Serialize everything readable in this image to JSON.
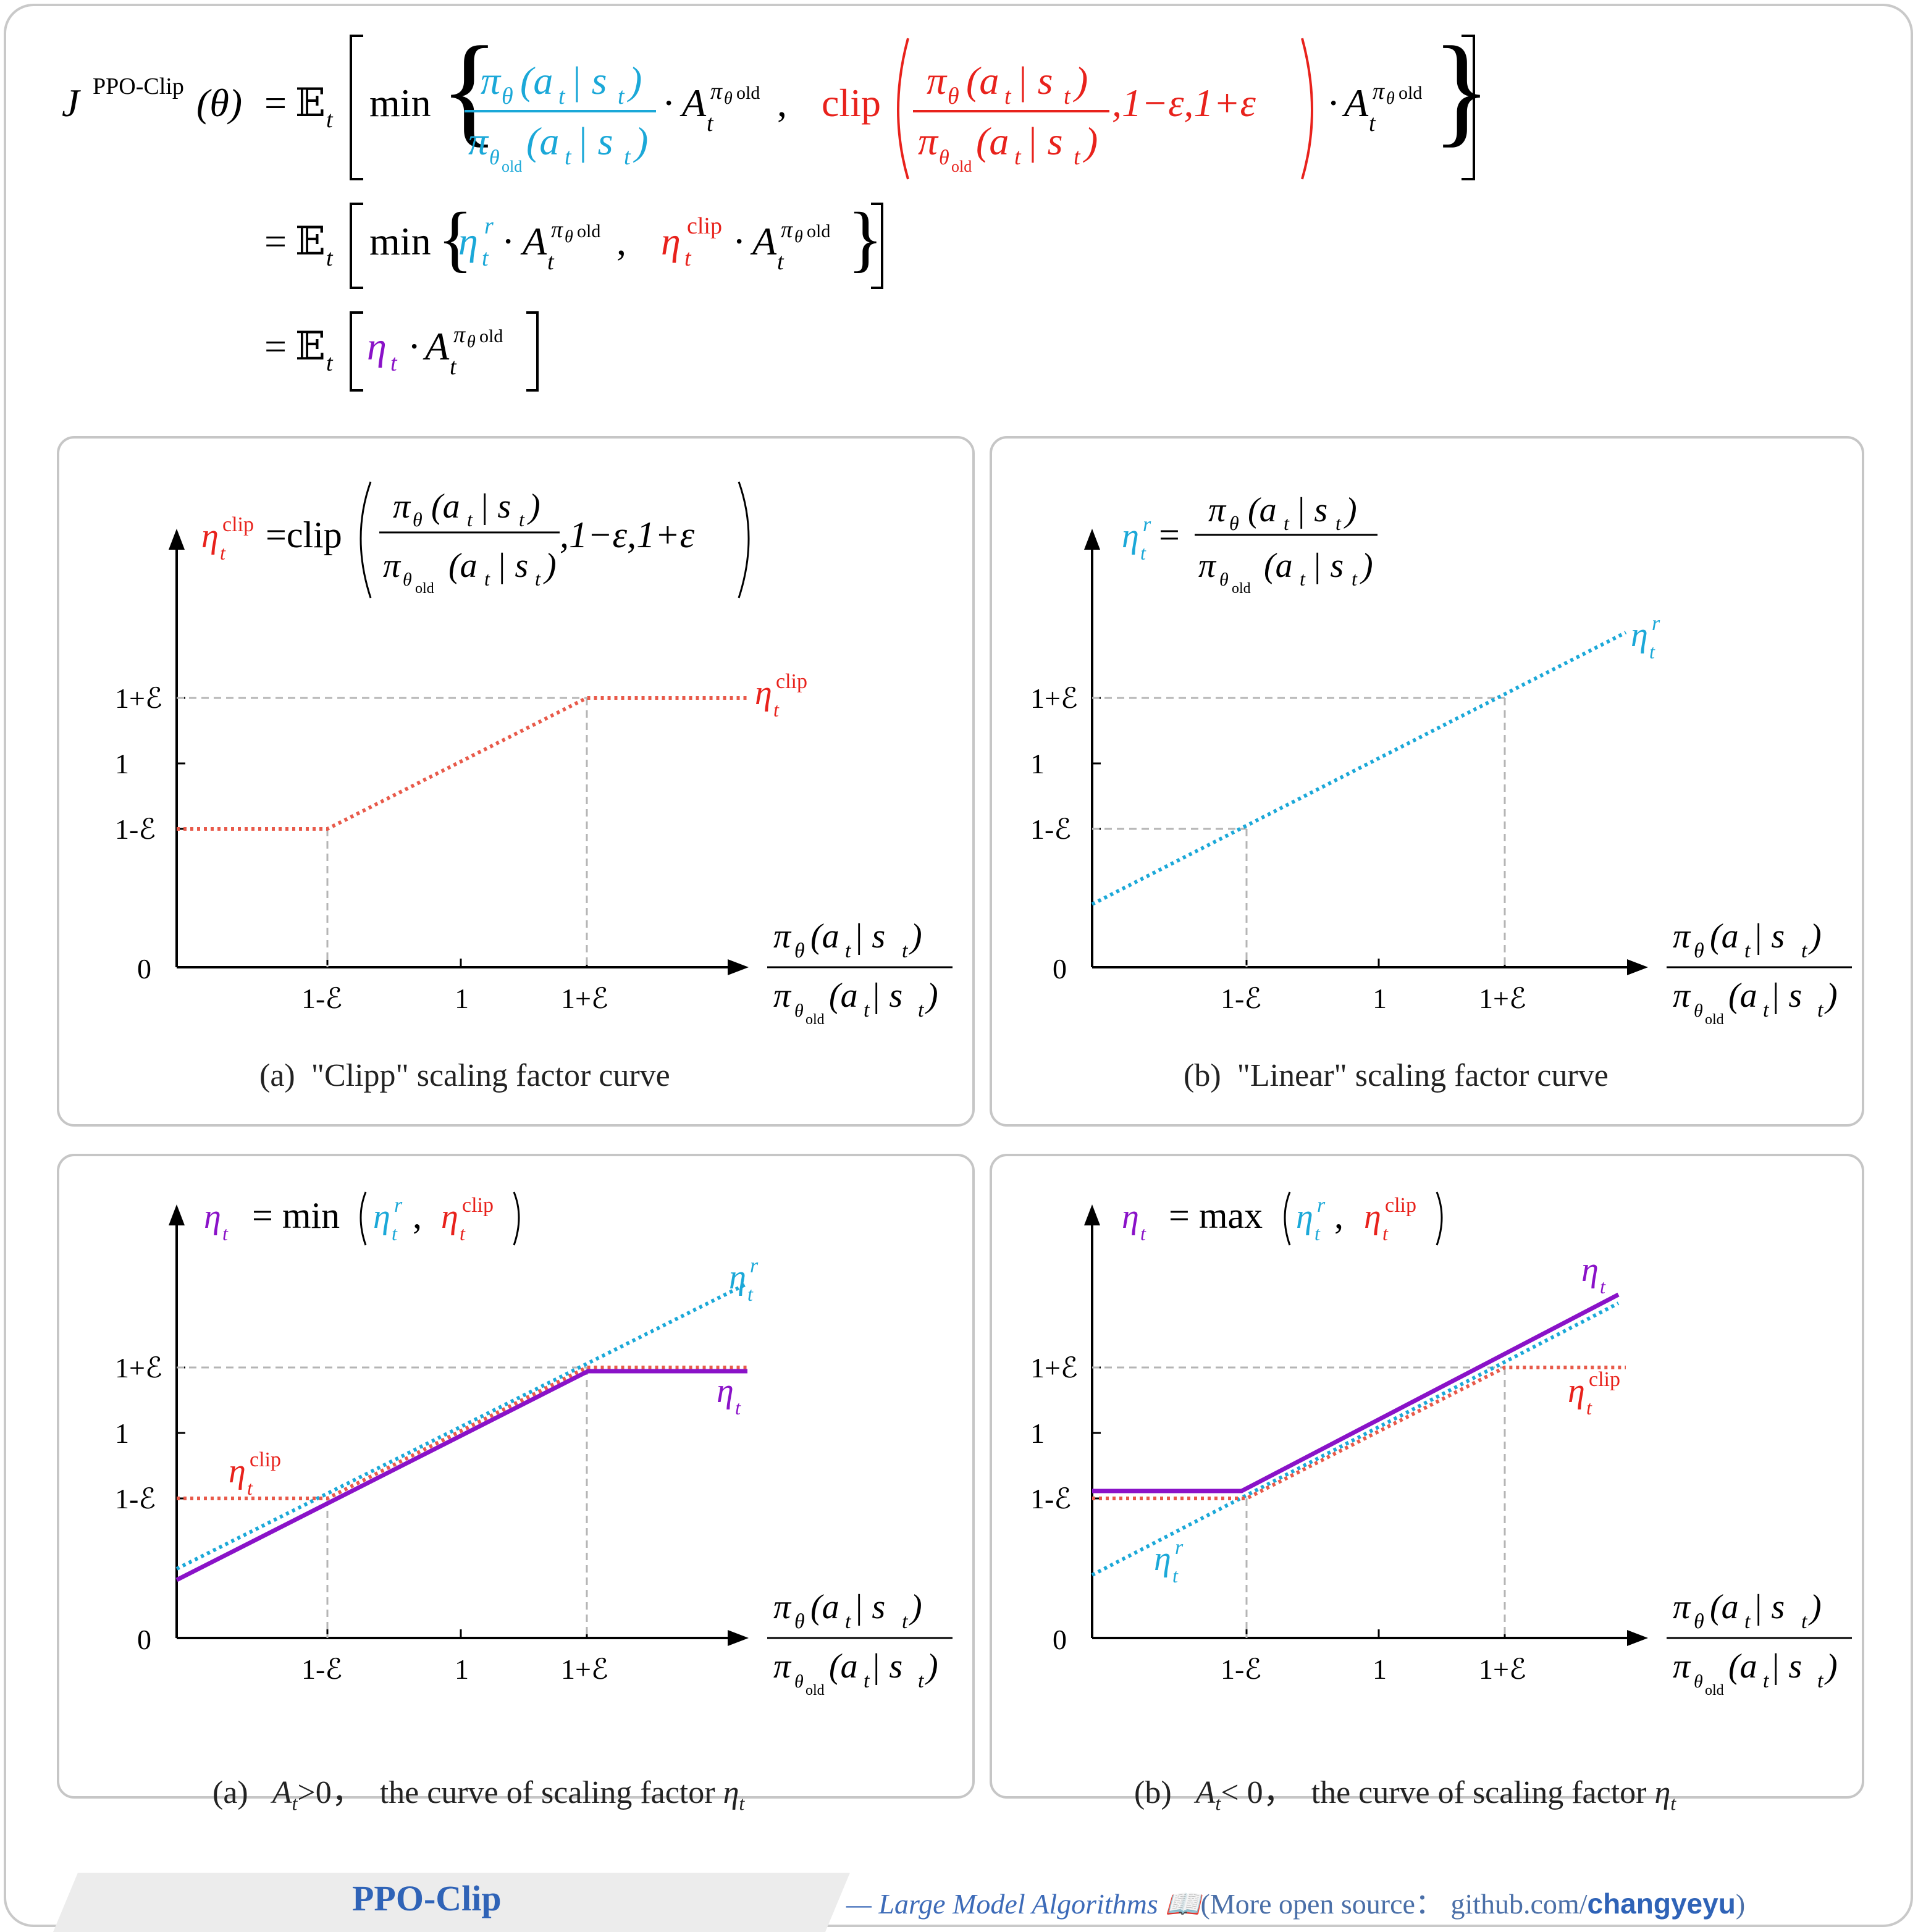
{
  "formula": {
    "lhs_J": "J",
    "lhs_sup": "PPO-Clip",
    "lhs_arg": "(θ)",
    "eq": "=",
    "E": "𝔼",
    "E_sub": "t",
    "min": "min",
    "clip": "clip",
    "pi_theta": "π",
    "theta": "θ",
    "args": "(a",
    "t": "t",
    "bar_s": " | s",
    "close": ")",
    "old": "old",
    "A": "A",
    "comma": ",",
    "one_minus_eps": "1−ε,1+ε",
    "eta": "η",
    "r": "r",
    "clip_sup": "clip",
    "dot": "·"
  },
  "panels": {
    "a": {
      "caption": "(a)  \"Clipp\" scaling factor curve",
      "title_eq": "=clip",
      "eps_args": ",1−ε,1+ε",
      "curve_label_sup": "clip"
    },
    "b": {
      "caption": "(b)  \"Linear\" scaling factor curve",
      "title_eq": "="
    },
    "c": {
      "caption_pre": "(a)   ",
      "caption_cond": ">0，  the curve of scaling factor ",
      "title_eq": "= min"
    },
    "d": {
      "caption_pre": "(b)   ",
      "caption_cond": "< 0，  the curve of scaling factor ",
      "title_eq": "= max"
    }
  },
  "axes": {
    "y_ticks": [
      "1+ℰ",
      "1",
      "1-ℰ",
      "0"
    ],
    "x_ticks": [
      "1-ℰ",
      "1",
      "1+ℰ"
    ],
    "x_label_num": "π",
    "x_label_den": "π"
  },
  "colors": {
    "blue": "#1ba8d8",
    "red": "#e8221c",
    "purple": "#8a12c8",
    "gray_dash": "#b5b5b5",
    "clip_curve": "#e85a4a"
  },
  "footer": {
    "title": "PPO-Clip",
    "tag_prefix": "— Large Model Algorithms 📖",
    "tag_open": "(More open source：  github.com/",
    "tag_user": "changyeyu",
    "tag_close": ")"
  }
}
